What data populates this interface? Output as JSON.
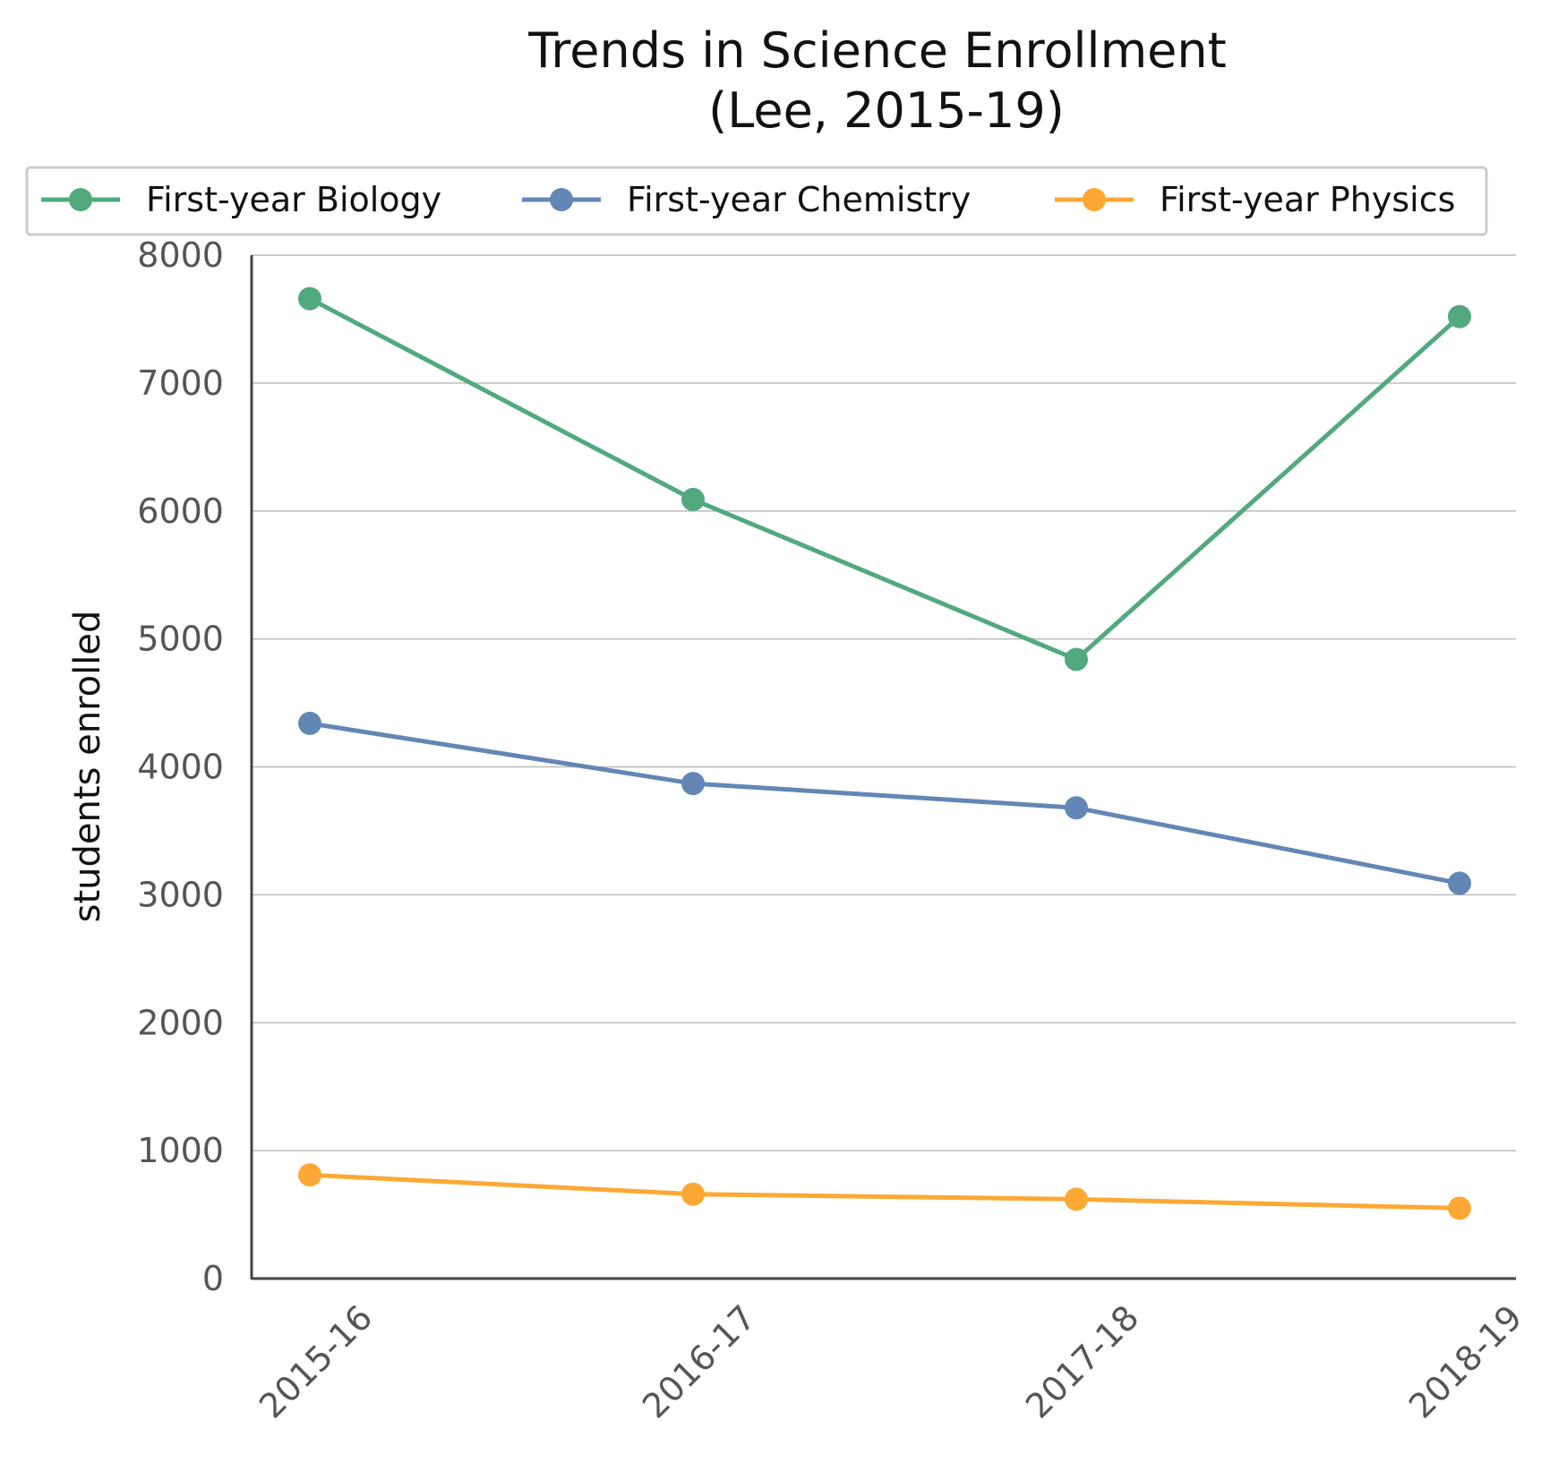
{
  "chart_data": {
    "type": "line",
    "title": "Trends in Science Enrollment",
    "subtitle": "(Lee, 2015-19)",
    "xlabel": "",
    "ylabel": "students enrolled",
    "categories": [
      "2015-16",
      "2016-17",
      "2017-18",
      "2018-19"
    ],
    "yticks": [
      "0",
      "1000",
      "2000",
      "3000",
      "4000",
      "5000",
      "6000",
      "7000",
      "8000"
    ],
    "ylim": [
      0,
      8000
    ],
    "grid": "horizontal",
    "legend_position": "top",
    "series": [
      {
        "name": "First-year Biology",
        "color": "#52a97e",
        "values": [
          7660,
          6090,
          4840,
          7520
        ]
      },
      {
        "name": "First-year Chemistry",
        "color": "#6387b5",
        "values": [
          4340,
          3870,
          3680,
          3090
        ]
      },
      {
        "name": "First-year Physics",
        "color": "#fba934",
        "values": [
          810,
          660,
          620,
          550
        ]
      }
    ]
  }
}
